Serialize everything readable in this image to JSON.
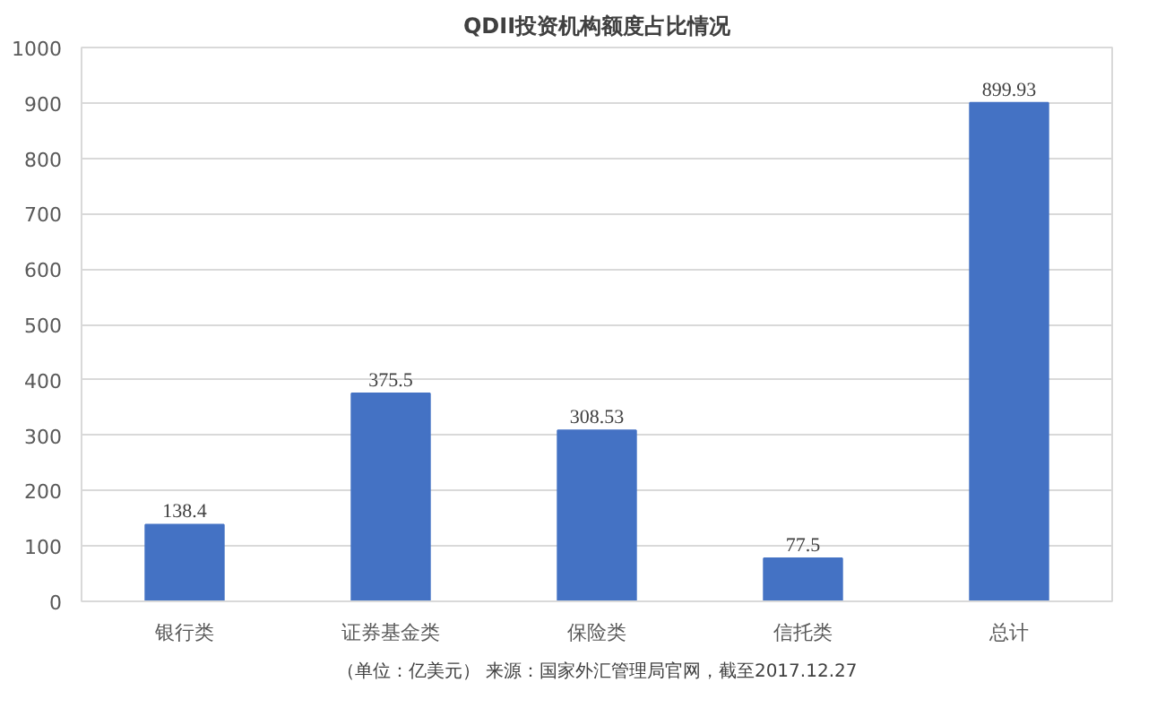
{
  "chart_data": {
    "type": "bar",
    "title": "QDII投资机构额度占比情况",
    "categories": [
      "银行类",
      "证券基金类",
      "保险类",
      "信托类",
      "总计"
    ],
    "values": [
      138.4,
      375.5,
      308.53,
      77.5,
      899.93
    ],
    "color": "#4472c4",
    "ylim": [
      0,
      1000
    ],
    "yticks": [
      0,
      100,
      200,
      300,
      400,
      500,
      600,
      700,
      800,
      900,
      1000
    ],
    "grid": "y",
    "data_labels": true,
    "annotations": [
      "（单位：亿美元） 来源：国家外汇管理局官网，截至2017.12.27"
    ]
  }
}
